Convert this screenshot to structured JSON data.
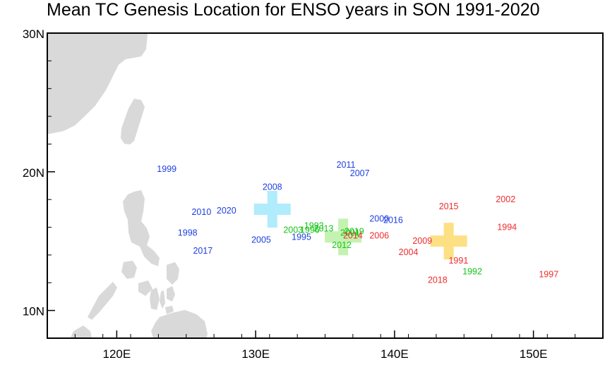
{
  "title": "Mean TC Genesis Location for ENSO years in SON 1991-2020",
  "map": {
    "lon_range": [
      115,
      155
    ],
    "lat_range": [
      8,
      30
    ],
    "x_ticks": [
      {
        "lon": 120,
        "label": "120E"
      },
      {
        "lon": 130,
        "label": "130E"
      },
      {
        "lon": 140,
        "label": "140E"
      },
      {
        "lon": 150,
        "label": "150E"
      }
    ],
    "y_ticks": [
      {
        "lat": 10,
        "label": "10N"
      },
      {
        "lat": 20,
        "label": "20N"
      },
      {
        "lat": 30,
        "label": "30N"
      }
    ],
    "land_color": "#d9d9d9"
  },
  "colors": {
    "la_nina": "#1f3fe0",
    "neutral": "#17c417",
    "el_nino": "#ee2c2c",
    "la_nina_mean": "#b0ecfb",
    "neutral_mean": "#c4f3b1",
    "el_nino_mean": "#fde084"
  },
  "mean_markers": [
    {
      "group": "la_nina",
      "lon": 131.2,
      "lat": 17.3
    },
    {
      "group": "neutral",
      "lon": 136.3,
      "lat": 15.3
    },
    {
      "group": "el_nino",
      "lon": 143.9,
      "lat": 15.0
    }
  ],
  "years": [
    {
      "year": "1999",
      "group": "la_nina",
      "lon": 123.6,
      "lat": 20.2
    },
    {
      "year": "2011",
      "group": "la_nina",
      "lon": 136.5,
      "lat": 20.5
    },
    {
      "year": "2007",
      "group": "la_nina",
      "lon": 137.5,
      "lat": 19.9
    },
    {
      "year": "2008",
      "group": "la_nina",
      "lon": 131.2,
      "lat": 18.9
    },
    {
      "year": "2010",
      "group": "la_nina",
      "lon": 126.1,
      "lat": 17.1
    },
    {
      "year": "2020",
      "group": "la_nina",
      "lon": 127.9,
      "lat": 17.2
    },
    {
      "year": "1998",
      "group": "la_nina",
      "lon": 125.1,
      "lat": 15.6
    },
    {
      "year": "2005",
      "group": "la_nina",
      "lon": 130.4,
      "lat": 15.1
    },
    {
      "year": "1995",
      "group": "la_nina",
      "lon": 133.3,
      "lat": 15.3
    },
    {
      "year": "2017",
      "group": "la_nina",
      "lon": 126.2,
      "lat": 14.3
    },
    {
      "year": "2000",
      "group": "la_nina",
      "lon": 138.9,
      "lat": 16.6
    },
    {
      "year": "2016",
      "group": "la_nina",
      "lon": 139.9,
      "lat": 16.5
    },
    {
      "year": "1993",
      "group": "neutral",
      "lon": 134.2,
      "lat": 16.1
    },
    {
      "year": "2003",
      "group": "neutral",
      "lon": 132.7,
      "lat": 15.8
    },
    {
      "year": "1996",
      "group": "neutral",
      "lon": 133.9,
      "lat": 15.8
    },
    {
      "year": "2013",
      "group": "neutral",
      "lon": 134.9,
      "lat": 15.9
    },
    {
      "year": "2001",
      "group": "neutral",
      "lon": 136.8,
      "lat": 15.6
    },
    {
      "year": "2019",
      "group": "neutral",
      "lon": 137.1,
      "lat": 15.7
    },
    {
      "year": "2012",
      "group": "neutral",
      "lon": 136.2,
      "lat": 14.7
    },
    {
      "year": "1992",
      "group": "neutral",
      "lon": 145.6,
      "lat": 12.8
    },
    {
      "year": "2014",
      "group": "el_nino",
      "lon": 137.0,
      "lat": 15.4
    },
    {
      "year": "2006",
      "group": "el_nino",
      "lon": 138.9,
      "lat": 15.4
    },
    {
      "year": "2009",
      "group": "el_nino",
      "lon": 142.0,
      "lat": 15.0
    },
    {
      "year": "2004",
      "group": "el_nino",
      "lon": 141.0,
      "lat": 14.2
    },
    {
      "year": "2015",
      "group": "el_nino",
      "lon": 143.9,
      "lat": 17.5
    },
    {
      "year": "2002",
      "group": "el_nino",
      "lon": 148.0,
      "lat": 18.0
    },
    {
      "year": "1994",
      "group": "el_nino",
      "lon": 148.1,
      "lat": 16.0
    },
    {
      "year": "1991",
      "group": "el_nino",
      "lon": 144.6,
      "lat": 13.6
    },
    {
      "year": "2018",
      "group": "el_nino",
      "lon": 143.1,
      "lat": 12.2
    },
    {
      "year": "1997",
      "group": "el_nino",
      "lon": 151.1,
      "lat": 12.6
    }
  ]
}
